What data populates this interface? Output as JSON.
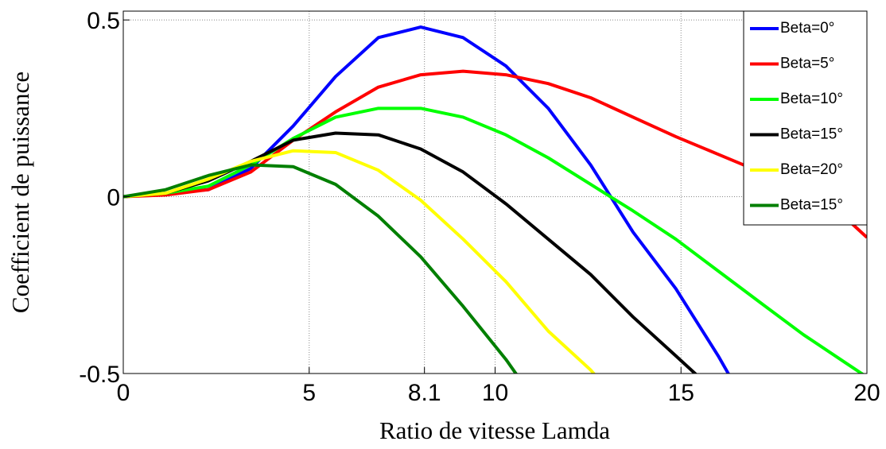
{
  "chart_data": {
    "type": "line",
    "xlabel": "Ratio de vitesse Lamda",
    "ylabel": "Coefficient de puissance",
    "x": [
      0,
      1.14,
      2.29,
      3.43,
      4.57,
      5.71,
      6.86,
      8,
      9.14,
      10.29,
      11.43,
      12.57,
      13.71,
      14.86,
      16,
      17.14,
      18.29,
      19.43,
      20
    ],
    "series": [
      {
        "name": "Beta=0°",
        "color": "#0000ff",
        "values": [
          0,
          0.01,
          0.02,
          0.08,
          0.2,
          0.34,
          0.45,
          0.48,
          0.45,
          0.37,
          0.25,
          0.09,
          -0.1,
          -0.26,
          -0.45,
          -0.66,
          null,
          null,
          null
        ]
      },
      {
        "name": "Beta=5°",
        "color": "#ff0000",
        "values": [
          0,
          0.005,
          0.02,
          0.07,
          0.16,
          0.24,
          0.31,
          0.345,
          0.355,
          0.345,
          0.32,
          0.28,
          0.225,
          0.17,
          0.12,
          0.07,
          0.02,
          -0.06,
          -0.115
        ]
      },
      {
        "name": "Beta=10°",
        "color": "#00ff00",
        "values": [
          0,
          0.01,
          0.03,
          0.09,
          0.165,
          0.225,
          0.25,
          0.25,
          0.225,
          0.175,
          0.11,
          0.035,
          -0.04,
          -0.12,
          -0.21,
          -0.3,
          -0.39,
          -0.47,
          -0.51
        ]
      },
      {
        "name": "Beta=15°",
        "color": "#000000",
        "values": [
          0,
          0.01,
          0.045,
          0.1,
          0.16,
          0.18,
          0.175,
          0.135,
          0.07,
          -0.02,
          -0.12,
          -0.22,
          -0.34,
          -0.45,
          -0.56,
          null,
          null,
          null,
          null
        ]
      },
      {
        "name": "Beta=20°",
        "color": "#ffff00",
        "values": [
          0,
          0.01,
          0.05,
          0.1,
          0.13,
          0.125,
          0.075,
          -0.01,
          -0.12,
          -0.24,
          -0.38,
          -0.49,
          -0.63,
          null,
          null,
          null,
          null,
          null,
          null
        ]
      },
      {
        "name": "Beta=15°",
        "color": "#007f00",
        "values": [
          0,
          0.02,
          0.06,
          0.09,
          0.085,
          0.035,
          -0.055,
          -0.17,
          -0.31,
          -0.46,
          -0.63,
          null,
          null,
          null,
          null,
          null,
          null,
          null,
          null
        ]
      }
    ],
    "xlim": [
      0,
      20
    ],
    "xticks": [
      0,
      5,
      8.1,
      10,
      15,
      20
    ],
    "ylim": [
      -0.5,
      0.525
    ],
    "yticks": [
      -0.5,
      0,
      0.5
    ],
    "grid": true,
    "legend": "upper right"
  }
}
